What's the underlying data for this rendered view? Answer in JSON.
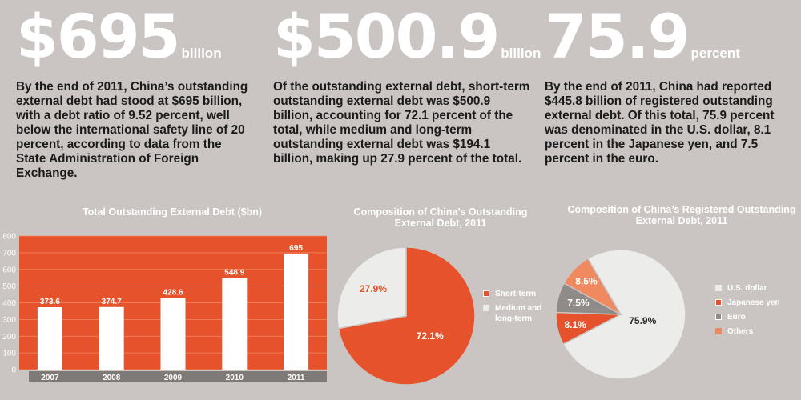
{
  "stats": [
    {
      "number": "$695",
      "unit": "billion",
      "text": "By the end of 2011, China’s outstanding external debt had stood at $695 billion, with a debt ratio of 9.52 percent, well below the international safety line of 20 percent, according to data from the State Administration of Foreign Exchange."
    },
    {
      "number": "$500.9",
      "unit": "billion",
      "text": "Of the outstanding external debt, short-term outstanding external debt was $500.9 billion, accounting for 72.1 percent of the total, while medium and long-term outstanding external debt was $194.1 billion, making up 27.9 percent of the total."
    },
    {
      "number": "75.9",
      "unit": "percent",
      "text": "By the end of 2011, China had reported $445.8 billion of registered outstanding external debt. Of this total, 75.9 percent was denominated in the U.S. dollar, 8.1 percent in the Japanese yen, and 7.5 percent in the euro."
    }
  ],
  "colors": {
    "background": "#cac5c2",
    "orange": "#e5522b",
    "light": "#ececea",
    "gray": "#8f8b88",
    "salmon": "#ef8a60"
  },
  "chart_data": [
    {
      "type": "bar",
      "title": "Total Outstanding External Debt ($bn)",
      "categories": [
        "2007",
        "2008",
        "2009",
        "2010",
        "2011"
      ],
      "values": [
        373.6,
        374.7,
        428.6,
        548.9,
        695
      ],
      "value_labels": [
        "373.6",
        "374.7",
        "428.6",
        "548.9",
        "695"
      ],
      "ylim": [
        0,
        800
      ],
      "yticks": [
        "0",
        "100",
        "200",
        "300",
        "400",
        "500",
        "600",
        "700",
        "800"
      ],
      "grid": true
    },
    {
      "type": "pie",
      "title": "Composition of China’s Outstanding External Debt, 2011",
      "labels": [
        "Short-term",
        "Medium and long-term"
      ],
      "values": [
        72.1,
        27.9
      ],
      "value_labels": [
        "72.1%",
        "27.9%"
      ],
      "colors": [
        "#e5522b",
        "#ececea"
      ],
      "legend_position": "right"
    },
    {
      "type": "pie",
      "title": "Composition of China’s Registered Outstanding External Debt, 2011",
      "labels": [
        "U.S. dollar",
        "Japanese yen",
        "Euro",
        "Others"
      ],
      "values": [
        75.9,
        8.1,
        7.5,
        8.5
      ],
      "value_labels": [
        "75.9%",
        "8.1%",
        "7.5%",
        "8.5%"
      ],
      "colors": [
        "#ececea",
        "#e5522b",
        "#8f8b88",
        "#ef8a60"
      ],
      "legend_position": "right"
    }
  ]
}
